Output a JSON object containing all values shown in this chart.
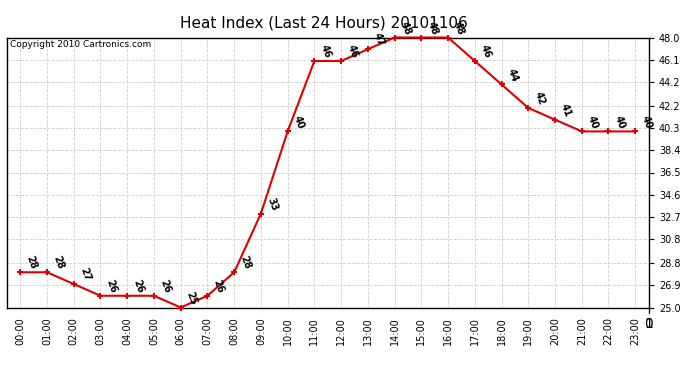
{
  "title": "Heat Index (Last 24 Hours) 20101106",
  "copyright_text": "Copyright 2010 Cartronics.com",
  "hours": [
    0,
    1,
    2,
    3,
    4,
    5,
    6,
    7,
    8,
    9,
    10,
    11,
    12,
    13,
    14,
    15,
    16,
    17,
    18,
    19,
    20,
    21,
    22,
    23
  ],
  "x_labels": [
    "00:00",
    "01:00",
    "02:00",
    "03:00",
    "04:00",
    "05:00",
    "06:00",
    "07:00",
    "08:00",
    "09:00",
    "10:00",
    "11:00",
    "12:00",
    "13:00",
    "14:00",
    "15:00",
    "16:00",
    "17:00",
    "18:00",
    "19:00",
    "20:00",
    "21:00",
    "22:00",
    "23:00"
  ],
  "values": [
    28,
    28,
    27,
    26,
    26,
    26,
    25,
    26,
    28,
    33,
    40,
    46,
    46,
    47,
    48,
    48,
    48,
    46,
    44,
    42,
    41,
    40,
    40,
    40
  ],
  "ylim_min": 25.0,
  "ylim_max": 48.0,
  "y_ticks": [
    25.0,
    26.9,
    28.8,
    30.8,
    32.7,
    34.6,
    36.5,
    38.4,
    40.3,
    42.2,
    44.2,
    46.1,
    48.0
  ],
  "line_color": "#DD0000",
  "marker_color": "#DD0000",
  "bg_color": "#FFFFFF",
  "plot_bg_color": "#FFFFFF",
  "grid_color": "#CCCCCC",
  "title_fontsize": 11,
  "label_fontsize": 7,
  "annotation_fontsize": 7,
  "copyright_fontsize": 6.5,
  "annotation_rotation": -70
}
